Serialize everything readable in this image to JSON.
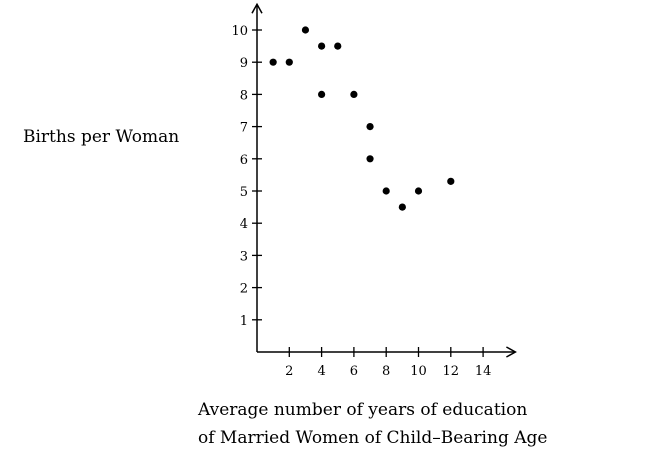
{
  "chart_data": {
    "type": "scatter",
    "title": "",
    "ylabel": "Births per Woman",
    "xlabel_lines": [
      "Average number of years of education",
      "of Married Women of Child–Bearing Age"
    ],
    "xlim": [
      0,
      16
    ],
    "ylim": [
      0,
      10.8
    ],
    "x_ticks": [
      2,
      4,
      6,
      8,
      10,
      12,
      14
    ],
    "y_ticks": [
      1,
      2,
      3,
      4,
      5,
      6,
      7,
      8,
      9,
      10
    ],
    "grid": false,
    "points": [
      {
        "x": 1,
        "y": 9
      },
      {
        "x": 2,
        "y": 9
      },
      {
        "x": 3,
        "y": 10
      },
      {
        "x": 4,
        "y": 9.5
      },
      {
        "x": 5,
        "y": 9.5
      },
      {
        "x": 4,
        "y": 8
      },
      {
        "x": 6,
        "y": 8
      },
      {
        "x": 7,
        "y": 7
      },
      {
        "x": 7,
        "y": 6
      },
      {
        "x": 8,
        "y": 5
      },
      {
        "x": 9,
        "y": 4.5
      },
      {
        "x": 10,
        "y": 5
      },
      {
        "x": 12,
        "y": 5.3
      }
    ],
    "marker_color": "#000000"
  }
}
